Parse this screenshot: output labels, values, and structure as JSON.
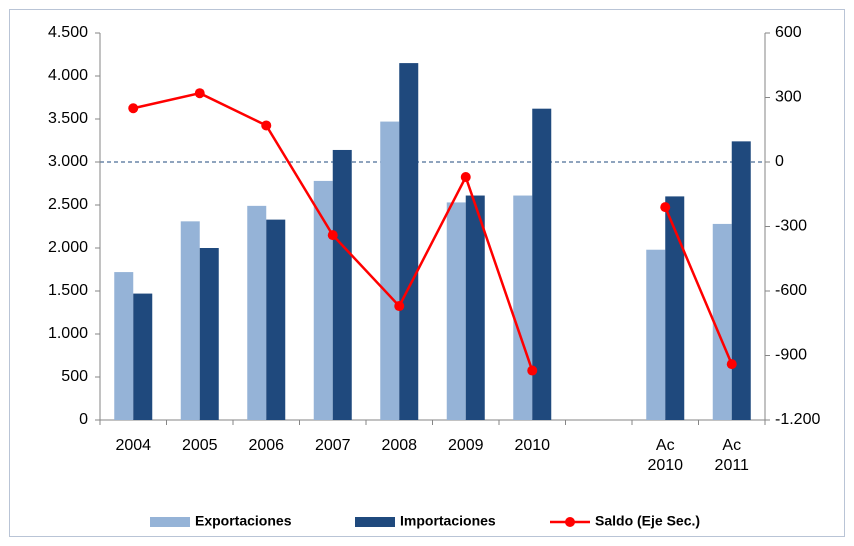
{
  "chart_data": {
    "type": "bar_line",
    "categories": [
      "2004",
      "2005",
      "2006",
      "2007",
      "2008",
      "2009",
      "2010",
      null,
      "Ac\n2010",
      "Ac\n2011"
    ],
    "series": [
      {
        "name": "Exportaciones",
        "color": "#95b3d7",
        "type": "bar",
        "values": [
          1720,
          2310,
          2490,
          2780,
          3470,
          2530,
          2610,
          null,
          1980,
          2280
        ]
      },
      {
        "name": "Importaciones",
        "color": "#1f497d",
        "type": "bar",
        "values": [
          1470,
          2000,
          2330,
          3140,
          4150,
          2610,
          3620,
          null,
          2600,
          3240
        ]
      },
      {
        "name": "Saldo (Eje Sec.)",
        "color": "#ff0000",
        "type": "line",
        "axis": "y2",
        "values": [
          250,
          320,
          170,
          -340,
          -670,
          -70,
          -970,
          null,
          -210,
          -940
        ]
      }
    ],
    "ylim": [
      0,
      4500
    ],
    "yticks": [
      0,
      500,
      {
        "value": 1000,
        "label": "1.000"
      },
      {
        "value": 1500,
        "label": "1.500"
      },
      {
        "value": 2000,
        "label": "2.000"
      },
      {
        "value": 2500,
        "label": "2.500"
      },
      {
        "value": 3000,
        "label": "3.000"
      },
      {
        "value": 3500,
        "label": "3.500"
      },
      {
        "value": 4000,
        "label": "4.000"
      },
      {
        "value": 4500,
        "label": "4.500"
      }
    ],
    "y2lim": [
      -1200,
      600
    ],
    "y2ticks": [
      {
        "value": -1200,
        "label": "-1.200"
      },
      -900,
      -600,
      -300,
      0,
      300,
      600
    ],
    "zero_line": "y2",
    "legend": "bottom"
  }
}
